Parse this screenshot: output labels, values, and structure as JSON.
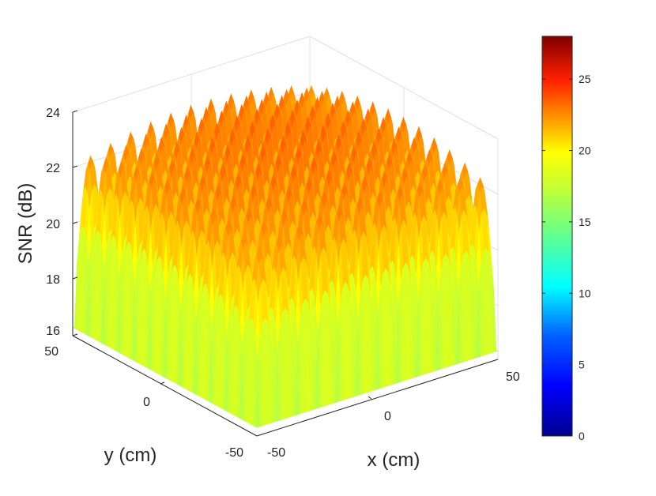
{
  "chart_data": {
    "type": "surface3d",
    "xlabel": "x (cm)",
    "ylabel": "y (cm)",
    "zlabel": "SNR (dB)",
    "x_range": [
      -50,
      50
    ],
    "y_range": [
      -50,
      50
    ],
    "z_range": [
      16,
      24
    ],
    "x_ticks": [
      "-50",
      "0",
      "50"
    ],
    "y_ticks": [
      "-50",
      "0",
      "50"
    ],
    "z_ticks": [
      "16",
      "18",
      "20",
      "22",
      "24"
    ],
    "peaks_per_axis": 12,
    "peak_snr_center": 23.8,
    "peak_snr_edge": 22.2,
    "valley_snr": 16.3,
    "colormap": "jet",
    "colorbar": {
      "range": [
        0,
        28
      ],
      "ticks": [
        "0",
        "5",
        "10",
        "15",
        "20",
        "25"
      ],
      "tick_values": [
        0,
        5,
        10,
        15,
        20,
        25
      ]
    },
    "grid": true,
    "view": "isometric"
  }
}
